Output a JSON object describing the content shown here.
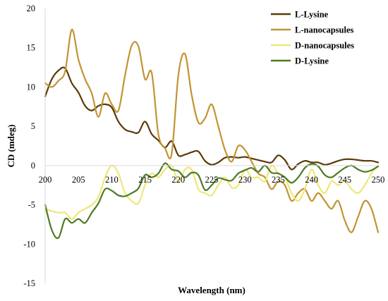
{
  "chart_data": {
    "type": "line",
    "title": "",
    "xlabel": "Wavelength (nm)",
    "ylabel": "CD (mdeg)",
    "xlim": [
      200,
      250
    ],
    "ylim": [
      -15,
      20
    ],
    "x_ticks": [
      "200",
      "205",
      "210",
      "215",
      "220",
      "225",
      "230",
      "235",
      "240",
      "245",
      "250"
    ],
    "y_ticks": [
      "20",
      "15",
      "10",
      "5",
      "0",
      "-5",
      "-10",
      "-15"
    ],
    "grid": false,
    "legend_position": "top-right",
    "series": [
      {
        "name": "L-Lysine",
        "color": "#5a3a08",
        "x": [
          200,
          201,
          202,
          203,
          204,
          205,
          206,
          207,
          208,
          209,
          210,
          211,
          212,
          213,
          214,
          215,
          216,
          217,
          218,
          219,
          220,
          221,
          222,
          223,
          224,
          225,
          226,
          227,
          228,
          229,
          230,
          231,
          232,
          233,
          234,
          235,
          236,
          237,
          238,
          239,
          240,
          241,
          242,
          243,
          244,
          245,
          246,
          247,
          248,
          249,
          250
        ],
        "y": [
          8.8,
          11.0,
          12.1,
          12.4,
          10.5,
          9.3,
          7.6,
          7.0,
          7.6,
          7.8,
          7.4,
          5.6,
          4.6,
          4.3,
          4.2,
          5.6,
          4.0,
          3.2,
          2.3,
          3.1,
          1.3,
          1.4,
          1.7,
          1.8,
          0.6,
          0.1,
          0.4,
          1.0,
          1.1,
          1.0,
          1.1,
          0.9,
          0.7,
          0.5,
          0.4,
          1.3,
          0.7,
          -0.5,
          0.2,
          0.6,
          0.4,
          0.4,
          0.1,
          0.3,
          0.6,
          0.8,
          0.8,
          0.7,
          0.6,
          0.6,
          0.4
        ]
      },
      {
        "name": "L-nanocapsules",
        "color": "#c29433",
        "x": [
          200,
          201,
          202,
          203,
          204,
          205,
          206,
          207,
          208,
          209,
          210,
          211,
          212,
          213,
          214,
          215,
          216,
          217,
          218,
          219,
          220,
          221,
          222,
          223,
          224,
          225,
          226,
          227,
          228,
          229,
          230,
          231,
          232,
          233,
          234,
          235,
          236,
          237,
          238,
          239,
          240,
          241,
          242,
          243,
          244,
          245,
          246,
          247,
          248,
          249,
          250
        ],
        "y": [
          10.5,
          10.0,
          10.8,
          12.0,
          17.3,
          13.5,
          11.0,
          9.2,
          6.2,
          9.2,
          7.8,
          7.0,
          11.5,
          15.3,
          15.2,
          11.0,
          11.8,
          4.0,
          2.2,
          1.5,
          11.5,
          14.2,
          9.0,
          5.5,
          6.0,
          7.8,
          5.0,
          2.0,
          0.5,
          2.5,
          2.0,
          0.5,
          -1.0,
          -1.5,
          -3.0,
          -2.0,
          -2.5,
          -4.5,
          -3.5,
          -3.0,
          -4.5,
          -3.5,
          -4.5,
          -5.5,
          -4.5,
          -7.0,
          -8.5,
          -6.5,
          -4.5,
          -5.5,
          -8.5
        ]
      },
      {
        "name": "D-nanocapsules",
        "color": "#ede87a",
        "x": [
          200,
          201,
          202,
          203,
          204,
          205,
          206,
          207,
          208,
          209,
          210,
          211,
          212,
          213,
          214,
          215,
          216,
          217,
          218,
          219,
          220,
          221,
          222,
          223,
          224,
          225,
          226,
          227,
          228,
          229,
          230,
          231,
          232,
          233,
          234,
          235,
          236,
          237,
          238,
          239,
          240,
          241,
          242,
          243,
          244,
          245,
          246,
          247,
          248,
          249,
          250
        ],
        "y": [
          -5.5,
          -5.8,
          -6.0,
          -6.0,
          -6.8,
          -6.0,
          -5.5,
          -5.0,
          -4.0,
          -1.5,
          0.0,
          -1.0,
          -3.5,
          -4.5,
          -4.8,
          -2.5,
          -1.0,
          -1.5,
          -0.5,
          0.0,
          -2.0,
          -0.5,
          -0.5,
          -3.0,
          -3.5,
          -3.8,
          -2.5,
          -1.5,
          -2.8,
          -2.5,
          -0.5,
          -1.5,
          -1.5,
          -2.0,
          0.0,
          -1.0,
          -1.5,
          -3.5,
          -4.5,
          -3.0,
          -0.5,
          -2.5,
          -3.5,
          -2.0,
          -2.5,
          -2.0,
          -3.0,
          -3.5,
          -2.5,
          -1.0,
          0.0
        ]
      },
      {
        "name": "D-Lysine",
        "color": "#4e7a25",
        "x": [
          200,
          201,
          202,
          203,
          204,
          205,
          206,
          207,
          208,
          209,
          210,
          211,
          212,
          213,
          214,
          215,
          216,
          217,
          218,
          219,
          220,
          221,
          222,
          223,
          224,
          225,
          226,
          227,
          228,
          229,
          230,
          231,
          232,
          233,
          234,
          235,
          236,
          237,
          238,
          239,
          240,
          241,
          242,
          243,
          244,
          245,
          246,
          247,
          248,
          249,
          250
        ],
        "y": [
          -5.0,
          -8.2,
          -9.2,
          -6.8,
          -7.3,
          -6.8,
          -7.3,
          -6.0,
          -4.8,
          -3.0,
          -3.2,
          -3.8,
          -3.9,
          -3.5,
          -2.9,
          -1.2,
          -1.5,
          -1.0,
          0.3,
          -0.5,
          -0.7,
          -1.5,
          -0.9,
          -1.2,
          -3.1,
          -2.5,
          -1.6,
          -1.8,
          -1.9,
          -1.0,
          -0.6,
          -0.3,
          -0.8,
          0.0,
          -0.9,
          -1.0,
          -1.5,
          -2.2,
          -1.5,
          -0.3,
          0.2,
          -0.1,
          -1.2,
          -1.5,
          -0.9,
          -0.3,
          0.0,
          -0.5,
          -0.8,
          -0.6,
          -0.1
        ]
      }
    ]
  }
}
